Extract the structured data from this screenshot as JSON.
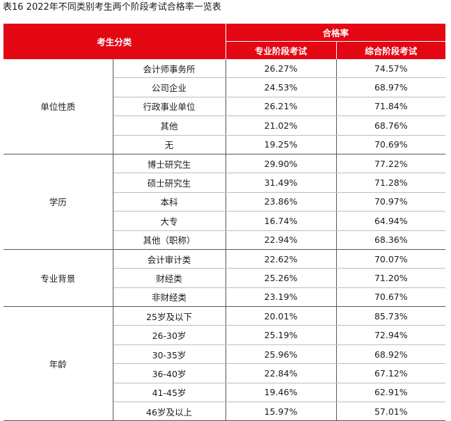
{
  "caption": "表16  2022年不同类别考生两个阶段考试合格率一览表",
  "header": {
    "category": "考生分类",
    "pass_rate": "合格率",
    "col1": "专业阶段考试",
    "col2": "综合阶段考试"
  },
  "colors": {
    "header_bg": "#e30613",
    "header_text": "#ffffff"
  },
  "groups": [
    {
      "name": "单位性质",
      "rows": [
        {
          "label": "会计师事务所",
          "prof": "26.27%",
          "comp": "74.57%"
        },
        {
          "label": "公司企业",
          "prof": "24.53%",
          "comp": "68.97%"
        },
        {
          "label": "行政事业单位",
          "prof": "26.21%",
          "comp": "71.84%"
        },
        {
          "label": "其他",
          "prof": "21.02%",
          "comp": "68.76%"
        },
        {
          "label": "无",
          "prof": "19.25%",
          "comp": "70.69%"
        }
      ]
    },
    {
      "name": "学历",
      "rows": [
        {
          "label": "博士研究生",
          "prof": "29.90%",
          "comp": "77.22%"
        },
        {
          "label": "硕士研究生",
          "prof": "31.49%",
          "comp": "71.28%"
        },
        {
          "label": "本科",
          "prof": "23.86%",
          "comp": "70.97%"
        },
        {
          "label": "大专",
          "prof": "16.74%",
          "comp": "64.94%"
        },
        {
          "label": "其他（职称）",
          "prof": "22.94%",
          "comp": "68.36%"
        }
      ]
    },
    {
      "name": "专业背景",
      "rows": [
        {
          "label": "会计审计类",
          "prof": "22.62%",
          "comp": "70.07%"
        },
        {
          "label": "财经类",
          "prof": "25.26%",
          "comp": "71.20%"
        },
        {
          "label": "非财经类",
          "prof": "23.19%",
          "comp": "70.67%"
        }
      ]
    },
    {
      "name": "年龄",
      "rows": [
        {
          "label": "25岁及以下",
          "prof": "20.01%",
          "comp": "85.73%"
        },
        {
          "label": "26-30岁",
          "prof": "25.19%",
          "comp": "72.94%"
        },
        {
          "label": "30-35岁",
          "prof": "25.96%",
          "comp": "68.92%"
        },
        {
          "label": "36-40岁",
          "prof": "22.84%",
          "comp": "67.12%"
        },
        {
          "label": "41-45岁",
          "prof": "19.46%",
          "comp": "62.91%"
        },
        {
          "label": "46岁及以上",
          "prof": "15.97%",
          "comp": "57.01%"
        }
      ]
    }
  ]
}
